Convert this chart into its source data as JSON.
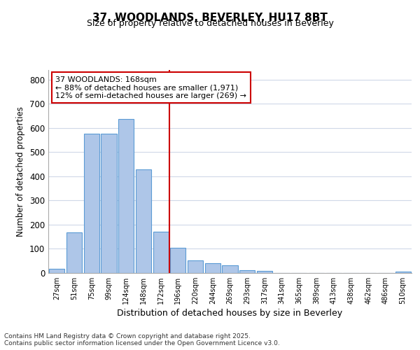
{
  "title": "37, WOODLANDS, BEVERLEY, HU17 8BT",
  "subtitle": "Size of property relative to detached houses in Beverley",
  "xlabel": "Distribution of detached houses by size in Beverley",
  "ylabel": "Number of detached properties",
  "bar_color": "#aec6e8",
  "bar_edge_color": "#5b9bd5",
  "categories": [
    "27sqm",
    "51sqm",
    "75sqm",
    "99sqm",
    "124sqm",
    "148sqm",
    "172sqm",
    "196sqm",
    "220sqm",
    "244sqm",
    "269sqm",
    "293sqm",
    "317sqm",
    "341sqm",
    "365sqm",
    "389sqm",
    "413sqm",
    "438sqm",
    "462sqm",
    "486sqm",
    "510sqm"
  ],
  "values": [
    18,
    168,
    577,
    577,
    638,
    430,
    170,
    105,
    52,
    40,
    32,
    12,
    10,
    0,
    0,
    0,
    0,
    0,
    0,
    0,
    6
  ],
  "vline_index": 6,
  "vline_color": "#cc0000",
  "annotation_text": "37 WOODLANDS: 168sqm\n← 88% of detached houses are smaller (1,971)\n12% of semi-detached houses are larger (269) →",
  "annotation_box_facecolor": "#ffffff",
  "annotation_box_edgecolor": "#cc0000",
  "ylim": [
    0,
    840
  ],
  "yticks": [
    0,
    100,
    200,
    300,
    400,
    500,
    600,
    700,
    800
  ],
  "fig_background": "#ffffff",
  "plot_background": "#ffffff",
  "grid_color": "#d0d8e8",
  "title_fontsize": 11,
  "subtitle_fontsize": 9,
  "annotation_fontsize": 8,
  "footer_text": "Contains HM Land Registry data © Crown copyright and database right 2025.\nContains public sector information licensed under the Open Government Licence v3.0."
}
